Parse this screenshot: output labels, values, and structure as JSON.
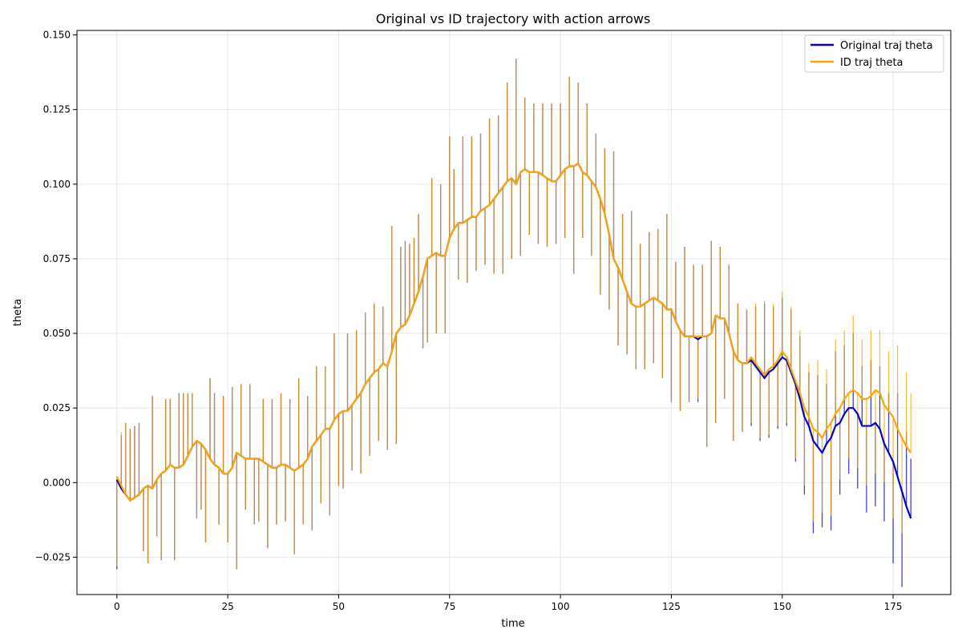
{
  "chart_data": {
    "type": "line",
    "title": "Original vs ID trajectory with action arrows",
    "xlabel": "time",
    "ylabel": "theta",
    "xlim": [
      -9,
      188
    ],
    "ylim": [
      -0.0375,
      0.1515
    ],
    "xticks": [
      0,
      25,
      50,
      75,
      100,
      125,
      150,
      175
    ],
    "yticks": [
      -0.025,
      0.0,
      0.025,
      0.05,
      0.075,
      0.1,
      0.125,
      0.15
    ],
    "ytick_labels": [
      "−0.025",
      "0.000",
      "0.025",
      "0.050",
      "0.075",
      "0.100",
      "0.125",
      "0.150"
    ],
    "grid": true,
    "legend_position": "top-right",
    "colors": {
      "original": "#0000cc",
      "id": "#ffa500",
      "arrow_overlap": "#c08850"
    },
    "legend": [
      {
        "name": "Original traj theta",
        "color": "#0000cc"
      },
      {
        "name": "ID traj theta",
        "color": "#ffa500"
      }
    ],
    "x_start": 0,
    "x_step": 1,
    "series_original": [
      0.001,
      -0.002,
      -0.004,
      -0.006,
      -0.005,
      -0.004,
      -0.002,
      -0.001,
      -0.002,
      0.001,
      0.003,
      0.004,
      0.006,
      0.005,
      0.005,
      0.006,
      0.009,
      0.012,
      0.014,
      0.013,
      0.011,
      0.008,
      0.006,
      0.005,
      0.003,
      0.003,
      0.005,
      0.01,
      0.009,
      0.008,
      0.008,
      0.008,
      0.008,
      0.007,
      0.006,
      0.005,
      0.005,
      0.006,
      0.006,
      0.005,
      0.004,
      0.005,
      0.006,
      0.008,
      0.012,
      0.014,
      0.016,
      0.018,
      0.018,
      0.021,
      0.023,
      0.024,
      0.024,
      0.026,
      0.028,
      0.03,
      0.033,
      0.035,
      0.037,
      0.038,
      0.04,
      0.039,
      0.044,
      0.05,
      0.052,
      0.053,
      0.056,
      0.06,
      0.064,
      0.069,
      0.075,
      0.076,
      0.077,
      0.076,
      0.076,
      0.082,
      0.085,
      0.087,
      0.087,
      0.088,
      0.089,
      0.089,
      0.091,
      0.092,
      0.093,
      0.095,
      0.097,
      0.099,
      0.101,
      0.102,
      0.1,
      0.104,
      0.105,
      0.104,
      0.104,
      0.104,
      0.103,
      0.102,
      0.101,
      0.101,
      0.103,
      0.105,
      0.106,
      0.106,
      0.107,
      0.104,
      0.103,
      0.101,
      0.099,
      0.095,
      0.09,
      0.083,
      0.075,
      0.072,
      0.068,
      0.064,
      0.06,
      0.059,
      0.059,
      0.06,
      0.061,
      0.062,
      0.061,
      0.06,
      0.058,
      0.058,
      0.054,
      0.051,
      0.049,
      0.049,
      0.049,
      0.048,
      0.049,
      0.049,
      0.05,
      0.056,
      0.055,
      0.055,
      0.05,
      0.044,
      0.041,
      0.04,
      0.04,
      0.041,
      0.039,
      0.037,
      0.035,
      0.037,
      0.038,
      0.04,
      0.042,
      0.041,
      0.037,
      0.033,
      0.028,
      0.022,
      0.019,
      0.014,
      0.012,
      0.01,
      0.013,
      0.015,
      0.019,
      0.02,
      0.023,
      0.025,
      0.025,
      0.023,
      0.019,
      0.019,
      0.019,
      0.02,
      0.018,
      0.013,
      0.01,
      0.007,
      0.002,
      -0.003,
      -0.008,
      -0.012
    ],
    "series_id": [
      0.002,
      -0.001,
      -0.004,
      -0.006,
      -0.005,
      -0.004,
      -0.002,
      -0.001,
      -0.002,
      0.001,
      0.003,
      0.004,
      0.006,
      0.005,
      0.005,
      0.006,
      0.009,
      0.012,
      0.014,
      0.013,
      0.011,
      0.008,
      0.006,
      0.005,
      0.003,
      0.003,
      0.005,
      0.01,
      0.009,
      0.008,
      0.008,
      0.008,
      0.008,
      0.007,
      0.006,
      0.005,
      0.005,
      0.006,
      0.006,
      0.005,
      0.004,
      0.005,
      0.006,
      0.008,
      0.012,
      0.014,
      0.016,
      0.018,
      0.018,
      0.021,
      0.023,
      0.024,
      0.024,
      0.026,
      0.028,
      0.03,
      0.033,
      0.035,
      0.037,
      0.038,
      0.04,
      0.039,
      0.044,
      0.05,
      0.052,
      0.053,
      0.056,
      0.06,
      0.064,
      0.069,
      0.075,
      0.076,
      0.077,
      0.076,
      0.076,
      0.082,
      0.085,
      0.087,
      0.087,
      0.088,
      0.089,
      0.089,
      0.091,
      0.092,
      0.093,
      0.095,
      0.097,
      0.099,
      0.101,
      0.102,
      0.1,
      0.104,
      0.105,
      0.104,
      0.104,
      0.104,
      0.103,
      0.102,
      0.101,
      0.101,
      0.103,
      0.105,
      0.106,
      0.106,
      0.107,
      0.104,
      0.103,
      0.101,
      0.099,
      0.095,
      0.09,
      0.083,
      0.075,
      0.072,
      0.068,
      0.064,
      0.06,
      0.059,
      0.059,
      0.06,
      0.061,
      0.062,
      0.061,
      0.06,
      0.058,
      0.058,
      0.054,
      0.051,
      0.049,
      0.049,
      0.049,
      0.049,
      0.049,
      0.049,
      0.05,
      0.056,
      0.055,
      0.055,
      0.05,
      0.044,
      0.041,
      0.04,
      0.04,
      0.042,
      0.04,
      0.038,
      0.036,
      0.038,
      0.039,
      0.041,
      0.044,
      0.042,
      0.038,
      0.034,
      0.03,
      0.025,
      0.022,
      0.018,
      0.017,
      0.015,
      0.018,
      0.02,
      0.023,
      0.025,
      0.028,
      0.03,
      0.031,
      0.03,
      0.028,
      0.028,
      0.029,
      0.031,
      0.03,
      0.026,
      0.024,
      0.022,
      0.018,
      0.015,
      0.012,
      0.01
    ],
    "arrow_dy": [
      -0.03,
      0.018,
      0.024,
      0.024,
      0.024,
      0.024,
      -0.021,
      -0.026,
      0.031,
      -0.019,
      -0.029,
      0.024,
      0.022,
      -0.031,
      0.025,
      0.024,
      0.021,
      0.018,
      -0.026,
      -0.022,
      -0.031,
      0.027,
      0.024,
      -0.019,
      0.026,
      -0.023,
      0.027,
      -0.039,
      0.024,
      -0.017,
      0.025,
      -0.022,
      -0.021,
      0.021,
      -0.028,
      0.023,
      -0.019,
      0.024,
      -0.019,
      0.023,
      -0.028,
      0.03,
      -0.02,
      0.021,
      -0.028,
      0.025,
      -0.023,
      0.021,
      -0.029,
      0.029,
      -0.024,
      -0.026,
      0.026,
      -0.022,
      0.023,
      -0.027,
      0.024,
      -0.026,
      0.023,
      -0.024,
      0.019,
      -0.028,
      0.042,
      -0.037,
      0.027,
      0.028,
      0.024,
      0.022,
      0.026,
      -0.024,
      -0.028,
      0.026,
      -0.027,
      0.024,
      -0.026,
      0.034,
      0.02,
      -0.019,
      0.029,
      -0.021,
      0.027,
      -0.018,
      0.026,
      -0.019,
      0.029,
      -0.025,
      0.026,
      -0.029,
      0.033,
      -0.027,
      0.042,
      -0.028,
      0.024,
      -0.021,
      0.023,
      -0.024,
      0.024,
      -0.023,
      0.026,
      -0.021,
      0.024,
      -0.023,
      0.03,
      -0.036,
      0.027,
      -0.022,
      0.024,
      -0.025,
      0.018,
      -0.032,
      0.022,
      -0.025,
      0.036,
      -0.026,
      0.022,
      -0.021,
      0.031,
      -0.021,
      0.021,
      -0.022,
      0.023,
      -0.022,
      0.024,
      -0.025,
      0.032,
      -0.031,
      0.02,
      -0.027,
      0.03,
      -0.022,
      0.024,
      -0.021,
      0.024,
      -0.037,
      0.031,
      -0.036,
      0.024,
      -0.027,
      0.023,
      -0.03,
      0.019,
      -0.023,
      0.018,
      -0.022,
      0.02,
      -0.023,
      0.025,
      -0.022,
      0.021,
      -0.022,
      0.02,
      -0.022,
      0.021,
      -0.026,
      0.021,
      -0.026,
      0.018,
      -0.031,
      0.024,
      -0.025,
      0.02,
      -0.031,
      0.025,
      -0.024,
      0.023,
      -0.022,
      0.025,
      -0.025,
      0.02,
      -0.029,
      0.022,
      -0.028,
      0.021,
      -0.026,
      0.02,
      -0.034,
      0.028,
      -0.032,
      0.025,
      0.02
    ]
  }
}
